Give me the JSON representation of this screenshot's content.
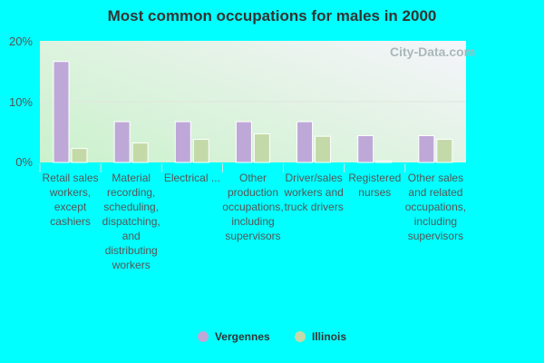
{
  "chart_data": {
    "type": "bar",
    "title": "Most common occupations for males in 2000",
    "categories": [
      "Retail sales workers, except cashiers",
      "Material recording, scheduling, dispatching, and distributing workers",
      "Electrical ...",
      "Other production occupations, including supervisors",
      "Driver/sales workers and truck drivers",
      "Registered nurses",
      "Other sales and related occupations, including supervisors"
    ],
    "series": [
      {
        "name": "Vergennes",
        "color": "#bea8d8",
        "values": [
          16.6,
          6.7,
          6.7,
          6.7,
          6.7,
          4.4,
          4.4
        ]
      },
      {
        "name": "Illinois",
        "color": "#c4d9a8",
        "values": [
          2.3,
          3.2,
          3.8,
          4.7,
          4.3,
          0.2,
          3.8
        ]
      }
    ],
    "yticks": [
      "0%",
      "10%",
      "20%"
    ],
    "ylim": [
      0,
      20
    ],
    "grid": true,
    "legend": "bottom",
    "watermark": "City-Data.com"
  }
}
